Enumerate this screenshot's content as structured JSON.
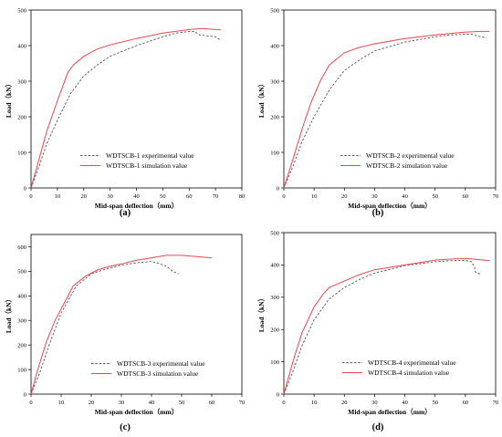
{
  "colors": {
    "experimental": "#555555",
    "simulation": "#e8474c"
  },
  "chart_data": [
    {
      "type": "line",
      "panel_label": "(a)",
      "xlabel": "Mid-span deflection（mm）",
      "ylabel": "Load（kN）",
      "xlim": [
        0,
        80
      ],
      "ylim": [
        0,
        500
      ],
      "xticks": [
        "0",
        "10",
        "20",
        "30",
        "40",
        "50",
        "60",
        "70",
        "80"
      ],
      "yticks": [
        "0",
        "100",
        "200",
        "300",
        "400",
        "500"
      ],
      "legend_position": "bottom-right",
      "series": [
        {
          "name": "WDTSCB-1  experimental value",
          "style": "dashed",
          "x": [
            0,
            3,
            6,
            10,
            15,
            20,
            25,
            30,
            40,
            50,
            55,
            60,
            62,
            64,
            66,
            70,
            72
          ],
          "y": [
            0,
            60,
            125,
            190,
            265,
            315,
            345,
            370,
            400,
            425,
            435,
            440,
            440,
            430,
            428,
            425,
            415
          ]
        },
        {
          "name": "WDTSCB-1  simulation value",
          "style": "solid",
          "x": [
            0,
            3,
            6,
            10,
            14,
            16,
            20,
            25,
            30,
            40,
            50,
            60,
            65,
            70,
            72
          ],
          "y": [
            0,
            80,
            160,
            245,
            325,
            345,
            370,
            390,
            402,
            420,
            435,
            445,
            448,
            445,
            445
          ]
        }
      ]
    },
    {
      "type": "line",
      "panel_label": "(b)",
      "xlabel": "Mid-span deflection（mm）",
      "ylabel": "Load（kN）",
      "xlim": [
        0,
        70
      ],
      "ylim": [
        0,
        500
      ],
      "xticks": [
        "0",
        "10",
        "20",
        "30",
        "40",
        "50",
        "60",
        "70"
      ],
      "yticks": [
        "0",
        "100",
        "200",
        "300",
        "400",
        "500"
      ],
      "legend_position": "bottom-right",
      "series": [
        {
          "name": "WDTSCB-2 experimental value",
          "style": "dashed",
          "x": [
            0,
            3,
            6,
            10,
            15,
            20,
            25,
            30,
            40,
            50,
            55,
            60,
            62,
            65,
            67
          ],
          "y": [
            0,
            60,
            130,
            200,
            275,
            330,
            360,
            385,
            410,
            425,
            430,
            432,
            432,
            425,
            422
          ]
        },
        {
          "name": "WDTSCB-2 simulation value",
          "style": "solid",
          "x": [
            0,
            3,
            6,
            9,
            12,
            15,
            20,
            25,
            30,
            40,
            50,
            60,
            65,
            68
          ],
          "y": [
            0,
            80,
            165,
            240,
            300,
            345,
            380,
            395,
            405,
            420,
            430,
            438,
            440,
            440
          ]
        }
      ]
    },
    {
      "type": "line",
      "panel_label": "(c)",
      "xlabel": "Mid-span deflection（mm）",
      "ylabel": "Load（kN）",
      "xlim": [
        0,
        70
      ],
      "ylim": [
        0,
        650
      ],
      "xticks": [
        "0",
        "10",
        "20",
        "30",
        "40",
        "50",
        "60",
        "70"
      ],
      "yticks": [
        "0",
        "100",
        "200",
        "300",
        "400",
        "500",
        "600"
      ],
      "legend_position": "bottom-right",
      "series": [
        {
          "name": "WDTSCB-3 experimental value",
          "style": "dashed",
          "x": [
            0,
            3,
            6,
            10,
            15,
            20,
            25,
            30,
            35,
            40,
            43,
            45,
            47,
            49
          ],
          "y": [
            0,
            90,
            200,
            330,
            440,
            490,
            510,
            525,
            535,
            540,
            530,
            520,
            500,
            490
          ]
        },
        {
          "name": "WDTSCB-3 simulation value",
          "style": "solid",
          "x": [
            0,
            2,
            5,
            8,
            11,
            14,
            18,
            22,
            26,
            30,
            35,
            40,
            45,
            50,
            55,
            60
          ],
          "y": [
            0,
            90,
            210,
            300,
            370,
            440,
            480,
            505,
            520,
            530,
            545,
            555,
            565,
            565,
            560,
            555
          ]
        }
      ]
    },
    {
      "type": "line",
      "panel_label": "(d)",
      "xlabel": "Mid-span deflection（mm）",
      "ylabel": "Load（kN）",
      "xlim": [
        0,
        70
      ],
      "ylim": [
        0,
        500
      ],
      "xticks": [
        "0",
        "10",
        "20",
        "30",
        "40",
        "50",
        "60",
        "70"
      ],
      "yticks": [
        "0",
        "100",
        "200",
        "300",
        "400",
        "500"
      ],
      "legend_position": "bottom-right",
      "series": [
        {
          "name": "WDTSCB-4 experimental value",
          "style": "dashed",
          "x": [
            0,
            3,
            6,
            10,
            15,
            20,
            25,
            30,
            40,
            50,
            55,
            60,
            62,
            63,
            63.3,
            64,
            65
          ],
          "y": [
            0,
            70,
            150,
            230,
            295,
            330,
            355,
            375,
            398,
            410,
            413,
            414,
            410,
            395,
            378,
            375,
            372
          ]
        },
        {
          "name": "WDTSCB-4 simulation value",
          "style": "solid",
          "x": [
            0,
            3,
            6,
            10,
            13,
            15,
            20,
            25,
            30,
            40,
            50,
            55,
            60,
            65,
            68
          ],
          "y": [
            0,
            100,
            190,
            270,
            310,
            330,
            350,
            370,
            385,
            400,
            415,
            418,
            420,
            416,
            413
          ]
        }
      ]
    }
  ]
}
